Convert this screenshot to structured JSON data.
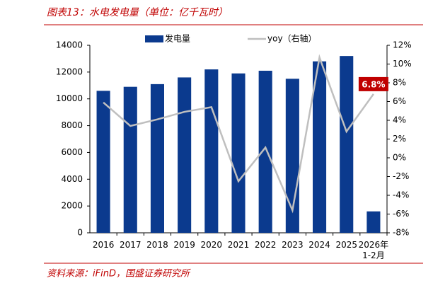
{
  "title": "图表13：水电发电量（单位：亿千瓦时）",
  "source": "资料来源：iFinD，国盛证券研究所",
  "chart_data": {
    "type": "bar",
    "categories": [
      "2016",
      "2017",
      "2018",
      "2019",
      "2020",
      "2021",
      "2022",
      "2023",
      "2024",
      "2025",
      "2026年\n1-2月"
    ],
    "series": [
      {
        "name": "发电量",
        "type": "bar",
        "color": "#0b3a8e",
        "values": [
          10600,
          10900,
          11100,
          11600,
          12200,
          11900,
          12100,
          11500,
          12800,
          13200,
          1600
        ]
      },
      {
        "name": "yoy（右轴）",
        "type": "line",
        "axis": "y2",
        "color": "#bfbfbf",
        "values": [
          5.9,
          3.4,
          4.1,
          4.9,
          5.4,
          -2.5,
          1.1,
          -5.6,
          10.7,
          2.8,
          6.8
        ],
        "value_labels": [
          null,
          null,
          null,
          null,
          null,
          null,
          null,
          null,
          null,
          null,
          "6.8%"
        ],
        "label_color": "#c00000"
      }
    ],
    "ylim": [
      0,
      14000
    ],
    "yticks": [
      0,
      2000,
      4000,
      6000,
      8000,
      10000,
      12000,
      14000
    ],
    "y2lim": [
      -8,
      12
    ],
    "y2ticks": [
      {
        "value": -8,
        "label": "-8%"
      },
      {
        "value": -6,
        "label": "-6%"
      },
      {
        "value": -4,
        "label": "-4%"
      },
      {
        "value": -2,
        "label": "-2%"
      },
      {
        "value": 0,
        "label": "0%"
      },
      {
        "value": 2,
        "label": "2%"
      },
      {
        "value": 4,
        "label": "4%"
      },
      {
        "value": 6,
        "label": "6%"
      },
      {
        "value": 8,
        "label": "8%"
      },
      {
        "value": 10,
        "label": "10%"
      },
      {
        "value": 12,
        "label": "12%"
      }
    ],
    "grid": false
  }
}
